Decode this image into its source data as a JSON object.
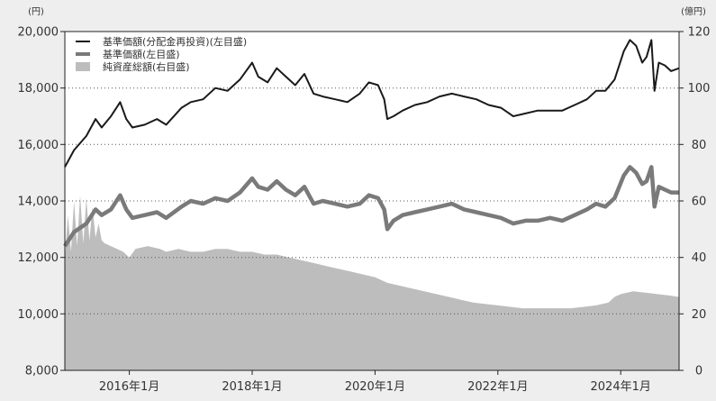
{
  "chart_data": {
    "type": "line",
    "title": "",
    "left_axis": {
      "unit": "(円)",
      "range": [
        8000,
        20000
      ],
      "ticks": [
        "8,000",
        "10,000",
        "12,000",
        "14,000",
        "16,000",
        "18,000",
        "20,000"
      ],
      "tick_values": [
        8000,
        10000,
        12000,
        14000,
        16000,
        18000,
        20000
      ]
    },
    "right_axis": {
      "unit": "(億円)",
      "range": [
        0,
        120
      ],
      "ticks": [
        "0",
        "20",
        "40",
        "60",
        "80",
        "100",
        "120"
      ],
      "tick_values": [
        0,
        20,
        40,
        60,
        80,
        100,
        120
      ]
    },
    "x_axis": {
      "range": [
        2014.95,
        2024.95
      ],
      "ticks": [
        "2016年1月",
        "2018年1月",
        "2020年1月",
        "2022年1月",
        "2024年1月"
      ],
      "tick_values": [
        2016.0,
        2018.0,
        2020.0,
        2022.0,
        2024.0
      ]
    },
    "grid": "horizontal dotted",
    "legend_position": "top-left",
    "legend": [
      "基準価額(分配金再投資)(左目盛)",
      "基準価額(左目盛)",
      "純資産総額(右目盛)"
    ],
    "series": [
      {
        "name": "基準価額(分配金再投資)(左目盛)",
        "axis": "left",
        "style": "line",
        "color": "#1a1a1a",
        "points": [
          [
            2014.95,
            15200
          ],
          [
            2015.1,
            15800
          ],
          [
            2015.3,
            16300
          ],
          [
            2015.45,
            16900
          ],
          [
            2015.55,
            16600
          ],
          [
            2015.7,
            17000
          ],
          [
            2015.85,
            17500
          ],
          [
            2015.95,
            16900
          ],
          [
            2016.05,
            16600
          ],
          [
            2016.25,
            16700
          ],
          [
            2016.45,
            16900
          ],
          [
            2016.6,
            16700
          ],
          [
            2016.85,
            17300
          ],
          [
            2017.0,
            17500
          ],
          [
            2017.2,
            17600
          ],
          [
            2017.4,
            18000
          ],
          [
            2017.6,
            17900
          ],
          [
            2017.8,
            18300
          ],
          [
            2018.0,
            18900
          ],
          [
            2018.1,
            18400
          ],
          [
            2018.25,
            18200
          ],
          [
            2018.4,
            18700
          ],
          [
            2018.55,
            18400
          ],
          [
            2018.7,
            18100
          ],
          [
            2018.85,
            18500
          ],
          [
            2019.0,
            17800
          ],
          [
            2019.15,
            17700
          ],
          [
            2019.35,
            17600
          ],
          [
            2019.55,
            17500
          ],
          [
            2019.75,
            17800
          ],
          [
            2019.9,
            18200
          ],
          [
            2020.05,
            18100
          ],
          [
            2020.15,
            17600
          ],
          [
            2020.2,
            16900
          ],
          [
            2020.3,
            17000
          ],
          [
            2020.45,
            17200
          ],
          [
            2020.65,
            17400
          ],
          [
            2020.85,
            17500
          ],
          [
            2021.05,
            17700
          ],
          [
            2021.25,
            17800
          ],
          [
            2021.45,
            17700
          ],
          [
            2021.65,
            17600
          ],
          [
            2021.85,
            17400
          ],
          [
            2022.05,
            17300
          ],
          [
            2022.25,
            17000
          ],
          [
            2022.45,
            17100
          ],
          [
            2022.65,
            17200
          ],
          [
            2022.85,
            17200
          ],
          [
            2023.05,
            17200
          ],
          [
            2023.25,
            17400
          ],
          [
            2023.45,
            17600
          ],
          [
            2023.6,
            17900
          ],
          [
            2023.75,
            17900
          ],
          [
            2023.9,
            18300
          ],
          [
            2024.05,
            19300
          ],
          [
            2024.15,
            19700
          ],
          [
            2024.25,
            19500
          ],
          [
            2024.35,
            18900
          ],
          [
            2024.42,
            19100
          ],
          [
            2024.5,
            19700
          ],
          [
            2024.55,
            17900
          ],
          [
            2024.62,
            18900
          ],
          [
            2024.72,
            18800
          ],
          [
            2024.82,
            18600
          ],
          [
            2024.95,
            18700
          ]
        ]
      },
      {
        "name": "基準価額(左目盛)",
        "axis": "left",
        "style": "thick-line",
        "color": "#7a7a7a",
        "points": [
          [
            2014.95,
            12400
          ],
          [
            2015.1,
            12900
          ],
          [
            2015.3,
            13200
          ],
          [
            2015.45,
            13700
          ],
          [
            2015.55,
            13500
          ],
          [
            2015.7,
            13700
          ],
          [
            2015.85,
            14200
          ],
          [
            2015.95,
            13700
          ],
          [
            2016.05,
            13400
          ],
          [
            2016.25,
            13500
          ],
          [
            2016.45,
            13600
          ],
          [
            2016.6,
            13400
          ],
          [
            2016.85,
            13800
          ],
          [
            2017.0,
            14000
          ],
          [
            2017.2,
            13900
          ],
          [
            2017.4,
            14100
          ],
          [
            2017.6,
            14000
          ],
          [
            2017.8,
            14300
          ],
          [
            2018.0,
            14800
          ],
          [
            2018.1,
            14500
          ],
          [
            2018.25,
            14400
          ],
          [
            2018.4,
            14700
          ],
          [
            2018.55,
            14400
          ],
          [
            2018.7,
            14200
          ],
          [
            2018.85,
            14500
          ],
          [
            2019.0,
            13900
          ],
          [
            2019.15,
            14000
          ],
          [
            2019.35,
            13900
          ],
          [
            2019.55,
            13800
          ],
          [
            2019.75,
            13900
          ],
          [
            2019.9,
            14200
          ],
          [
            2020.05,
            14100
          ],
          [
            2020.15,
            13700
          ],
          [
            2020.2,
            13000
          ],
          [
            2020.3,
            13300
          ],
          [
            2020.45,
            13500
          ],
          [
            2020.65,
            13600
          ],
          [
            2020.85,
            13700
          ],
          [
            2021.05,
            13800
          ],
          [
            2021.25,
            13900
          ],
          [
            2021.45,
            13700
          ],
          [
            2021.65,
            13600
          ],
          [
            2021.85,
            13500
          ],
          [
            2022.05,
            13400
          ],
          [
            2022.25,
            13200
          ],
          [
            2022.45,
            13300
          ],
          [
            2022.65,
            13300
          ],
          [
            2022.85,
            13400
          ],
          [
            2023.05,
            13300
          ],
          [
            2023.25,
            13500
          ],
          [
            2023.45,
            13700
          ],
          [
            2023.6,
            13900
          ],
          [
            2023.75,
            13800
          ],
          [
            2023.9,
            14100
          ],
          [
            2024.05,
            14900
          ],
          [
            2024.15,
            15200
          ],
          [
            2024.25,
            15000
          ],
          [
            2024.35,
            14600
          ],
          [
            2024.42,
            14700
          ],
          [
            2024.5,
            15200
          ],
          [
            2024.55,
            13800
          ],
          [
            2024.62,
            14500
          ],
          [
            2024.72,
            14400
          ],
          [
            2024.82,
            14300
          ],
          [
            2024.95,
            14300
          ]
        ]
      },
      {
        "name": "純資産総額(右目盛)",
        "axis": "right",
        "style": "area",
        "color": "#bdbdbd",
        "points": [
          [
            2014.95,
            40
          ],
          [
            2015.0,
            55
          ],
          [
            2015.05,
            42
          ],
          [
            2015.1,
            60
          ],
          [
            2015.15,
            44
          ],
          [
            2015.2,
            62
          ],
          [
            2015.25,
            45
          ],
          [
            2015.3,
            61
          ],
          [
            2015.35,
            46
          ],
          [
            2015.4,
            58
          ],
          [
            2015.45,
            47
          ],
          [
            2015.5,
            52
          ],
          [
            2015.55,
            46
          ],
          [
            2015.6,
            45
          ],
          [
            2015.7,
            44
          ],
          [
            2015.8,
            43
          ],
          [
            2015.9,
            42
          ],
          [
            2016.0,
            40
          ],
          [
            2016.1,
            43
          ],
          [
            2016.3,
            44
          ],
          [
            2016.5,
            43
          ],
          [
            2016.6,
            42
          ],
          [
            2016.8,
            43
          ],
          [
            2017.0,
            42
          ],
          [
            2017.2,
            42
          ],
          [
            2017.4,
            43
          ],
          [
            2017.6,
            43
          ],
          [
            2017.8,
            42
          ],
          [
            2018.0,
            42
          ],
          [
            2018.2,
            41
          ],
          [
            2018.4,
            41
          ],
          [
            2018.6,
            40
          ],
          [
            2018.8,
            39
          ],
          [
            2019.0,
            38
          ],
          [
            2019.2,
            37
          ],
          [
            2019.4,
            36
          ],
          [
            2019.6,
            35
          ],
          [
            2019.8,
            34
          ],
          [
            2020.0,
            33
          ],
          [
            2020.2,
            31
          ],
          [
            2020.4,
            30
          ],
          [
            2020.6,
            29
          ],
          [
            2020.8,
            28
          ],
          [
            2021.0,
            27
          ],
          [
            2021.2,
            26
          ],
          [
            2021.4,
            25
          ],
          [
            2021.6,
            24
          ],
          [
            2021.8,
            23.5
          ],
          [
            2022.0,
            23
          ],
          [
            2022.2,
            22.5
          ],
          [
            2022.4,
            22
          ],
          [
            2022.6,
            22
          ],
          [
            2022.8,
            22
          ],
          [
            2023.0,
            22
          ],
          [
            2023.2,
            22
          ],
          [
            2023.4,
            22.5
          ],
          [
            2023.6,
            23
          ],
          [
            2023.8,
            24
          ],
          [
            2023.9,
            26
          ],
          [
            2024.0,
            27
          ],
          [
            2024.2,
            28
          ],
          [
            2024.4,
            27.5
          ],
          [
            2024.6,
            27
          ],
          [
            2024.8,
            26.5
          ],
          [
            2024.95,
            26
          ]
        ]
      }
    ]
  }
}
